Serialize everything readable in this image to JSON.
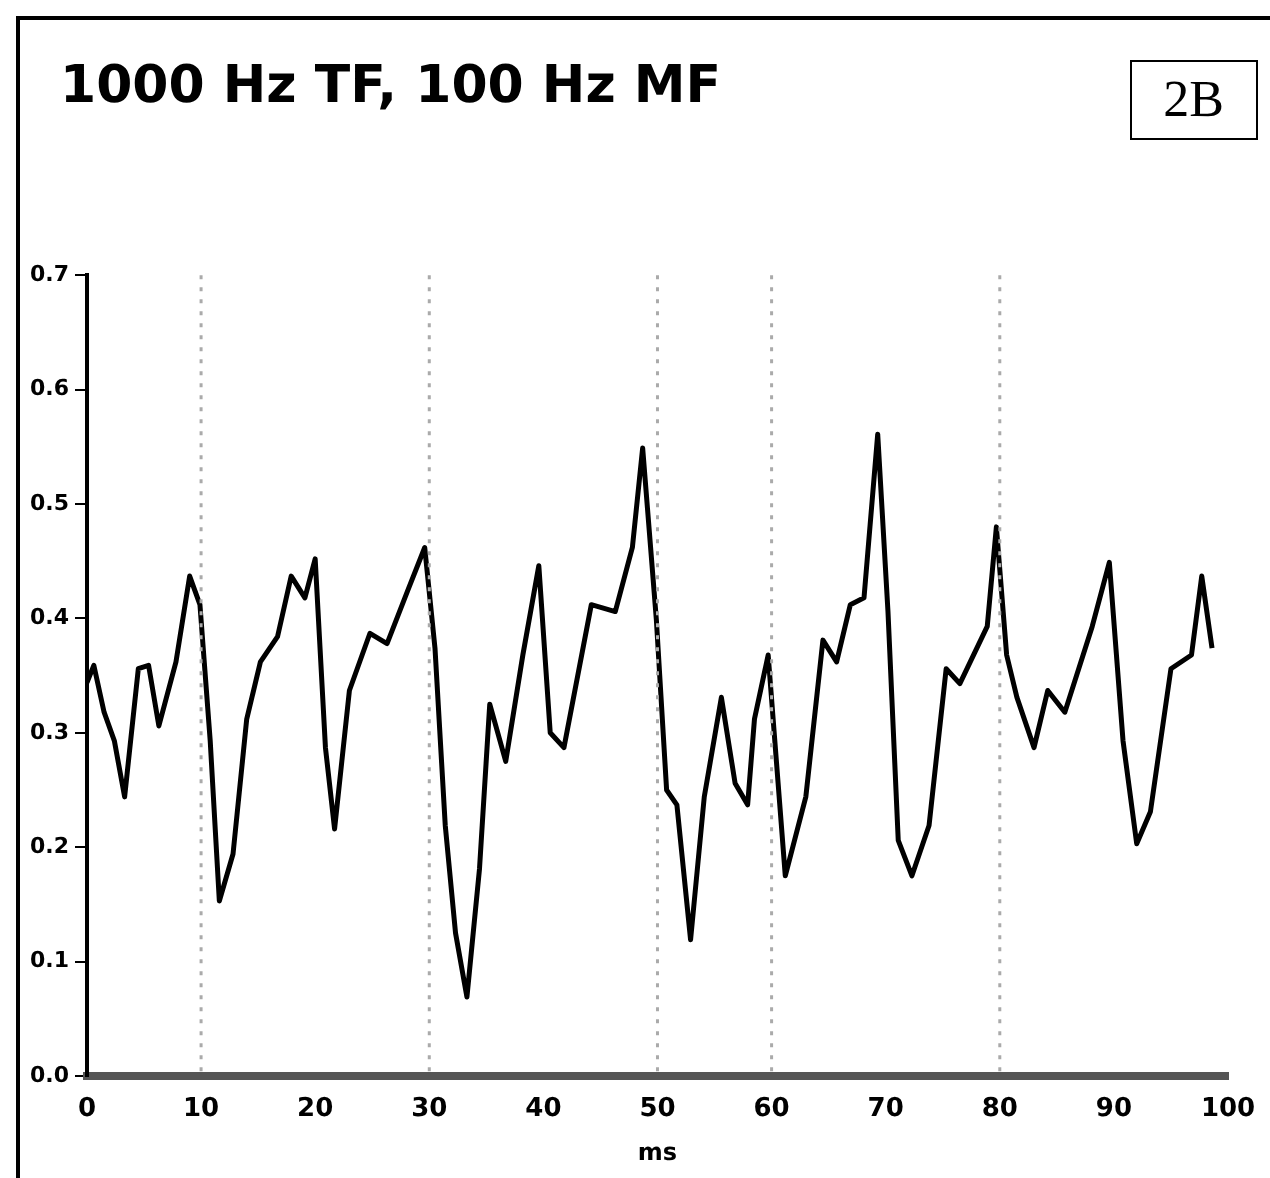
{
  "chart_data": {
    "type": "line",
    "title": "1000 Hz TF, 100 Hz MF",
    "xlabel": "ms",
    "annotations": [
      "2B"
    ],
    "x": [
      0,
      0.6,
      1.5,
      2.4,
      3.3,
      4.5,
      5.4,
      6.3,
      7.8,
      9.0,
      9.9,
      10.8,
      11.6,
      12.8,
      14.0,
      15.2,
      16.7,
      17.9,
      19.1,
      20.0,
      20.9,
      21.7,
      23.0,
      24.8,
      26.3,
      28.1,
      29.6,
      30.5,
      31.4,
      32.3,
      33.3,
      34.4,
      35.3,
      36.7,
      38.2,
      39.6,
      40.6,
      41.8,
      44.2,
      46.3,
      47.8,
      48.7,
      49.9,
      50.8,
      51.7,
      52.9,
      54.1,
      55.6,
      56.8,
      57.9,
      58.5,
      59.7,
      61.2,
      63.0,
      64.5,
      65.7,
      66.9,
      68.1,
      69.3,
      70.2,
      71.1,
      72.3,
      73.8,
      75.3,
      76.5,
      78.9,
      79.7,
      80.6,
      81.5,
      83.0,
      84.2,
      85.7,
      88.1,
      89.6,
      90.8,
      92.0,
      93.2,
      95.0,
      96.8,
      97.7,
      98.6
    ],
    "series": [
      {
        "color": "#000000",
        "values": [
          0.344,
          0.359,
          0.318,
          0.293,
          0.244,
          0.356,
          0.359,
          0.306,
          0.362,
          0.437,
          0.412,
          0.293,
          0.153,
          0.194,
          0.312,
          0.362,
          0.384,
          0.437,
          0.418,
          0.452,
          0.287,
          0.216,
          0.337,
          0.387,
          0.378,
          0.424,
          0.462,
          0.374,
          0.219,
          0.125,
          0.069,
          0.181,
          0.325,
          0.275,
          0.368,
          0.446,
          0.3,
          0.287,
          0.412,
          0.406,
          0.462,
          0.549,
          0.399,
          0.25,
          0.237,
          0.119,
          0.244,
          0.331,
          0.256,
          0.237,
          0.312,
          0.368,
          0.175,
          0.244,
          0.381,
          0.362,
          0.412,
          0.418,
          0.561,
          0.406,
          0.206,
          0.175,
          0.219,
          0.356,
          0.343,
          0.393,
          0.48,
          0.368,
          0.331,
          0.287,
          0.337,
          0.318,
          0.393,
          0.449,
          0.293,
          0.203,
          0.231,
          0.356,
          0.368,
          0.437,
          0.374
        ]
      }
    ],
    "xlim": [
      0,
      100
    ],
    "xticks": [
      0,
      10,
      20,
      30,
      40,
      50,
      60,
      70,
      80,
      90,
      100
    ],
    "ylim": [
      0,
      0.7
    ],
    "yticks": [
      {
        "value": 0,
        "label": "0.0"
      },
      0.1,
      0.2,
      0.3,
      0.4,
      0.5,
      0.6,
      0.7
    ],
    "ref_lines": [
      {
        "axis": "x",
        "value": 10,
        "color": "#aaaaaa",
        "line_style": "dotted"
      },
      {
        "axis": "x",
        "value": 30,
        "color": "#aaaaaa",
        "line_style": "dotted"
      },
      {
        "axis": "x",
        "value": 50,
        "color": "#aaaaaa",
        "line_style": "dotted"
      },
      {
        "axis": "x",
        "value": 60,
        "color": "#aaaaaa",
        "line_style": "dotted"
      },
      {
        "axis": "x",
        "value": 80,
        "color": "#aaaaaa",
        "line_style": "dotted"
      }
    ],
    "grid": false,
    "legend": false,
    "marker": "none",
    "line_style": "solid"
  }
}
